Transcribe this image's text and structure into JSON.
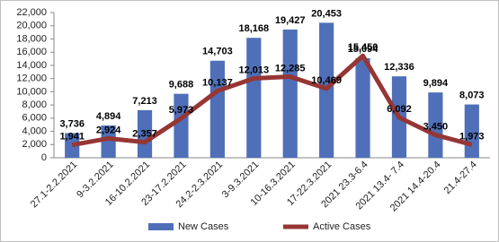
{
  "chart_data": {
    "type": "bar-line",
    "categories": [
      "27.1-2.2.2021",
      "9-3.2.2021",
      "16-10.2.2021",
      "23-17.2.2021",
      "24.2-2.3.2021",
      "3-9.3.2021",
      "10-16.3.2021",
      "17-22.3.2021",
      "2021 23.3-6.4",
      "2021 13.4- 7.4",
      "2021 14.4-20.4",
      "21.4-27.4"
    ],
    "series": [
      {
        "name": "New Cases",
        "type": "bar",
        "color": "#4f6fb8",
        "values": [
          3736,
          4894,
          7213,
          9688,
          14703,
          18168,
          19427,
          20453,
          15094,
          12336,
          9894,
          8073
        ],
        "value_labels": [
          "3,736",
          "4,894",
          "7,213",
          "9,688",
          "14,703",
          "18,168",
          "19,427",
          "20,453",
          "15,094",
          "12,336",
          "9,894",
          "8,073"
        ]
      },
      {
        "name": "Active Cases",
        "type": "line",
        "color": "#963634",
        "values": [
          1941,
          2924,
          2357,
          5973,
          10137,
          12013,
          12285,
          10469,
          15450,
          6092,
          3450,
          1973
        ],
        "value_labels": [
          "1,941",
          "2,924",
          "2,357",
          "5,973",
          "10,137",
          "12,013",
          "12,285",
          "10,469",
          "15,450",
          "6,092",
          "3,450",
          "1,973"
        ]
      }
    ],
    "ylim": [
      0,
      22000
    ],
    "yticks": [
      0,
      {
        "value": 2000,
        "label": "2,000"
      },
      {
        "value": 4000,
        "label": "4,000"
      },
      {
        "value": 6000,
        "label": "6,000"
      },
      {
        "value": 8000,
        "label": "8,000"
      },
      {
        "value": 10000,
        "label": "10,000"
      },
      {
        "value": 12000,
        "label": "12,000"
      },
      {
        "value": 14000,
        "label": "14,000"
      },
      {
        "value": 16000,
        "label": "16,000"
      },
      {
        "value": 18000,
        "label": "18,000"
      },
      {
        "value": 20000,
        "label": "20,000"
      },
      {
        "value": 22000,
        "label": "22,000"
      }
    ],
    "grid": false,
    "legend": "bottom"
  }
}
